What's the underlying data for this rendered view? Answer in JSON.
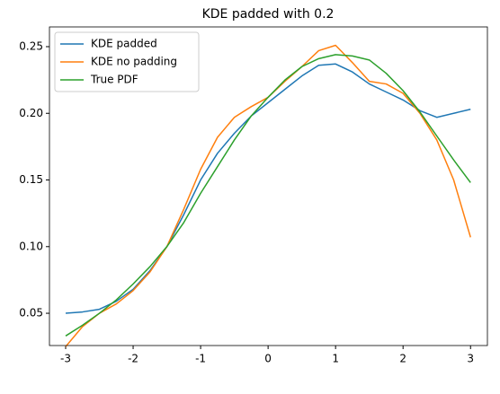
{
  "chart_data": {
    "type": "line",
    "title": "KDE padded with 0.2",
    "x": [
      -3,
      -2.75,
      -2.5,
      -2.25,
      -2,
      -1.75,
      -1.5,
      -1.25,
      -1,
      -0.75,
      -0.5,
      -0.25,
      0,
      0.25,
      0.5,
      0.75,
      1,
      1.25,
      1.5,
      1.75,
      2,
      2.25,
      2.5,
      2.75,
      3
    ],
    "series": [
      {
        "name": "KDE padded",
        "color": "#1f77b4",
        "values": [
          0.05,
          0.051,
          0.053,
          0.059,
          0.068,
          0.082,
          0.1,
          0.124,
          0.15,
          0.17,
          0.185,
          0.198,
          0.208,
          0.218,
          0.228,
          0.236,
          0.237,
          0.231,
          0.222,
          0.216,
          0.21,
          0.202,
          0.197,
          0.2,
          0.203
        ]
      },
      {
        "name": "KDE no padding",
        "color": "#ff7f0e",
        "values": [
          0.025,
          0.04,
          0.05,
          0.057,
          0.067,
          0.081,
          0.1,
          0.128,
          0.158,
          0.182,
          0.197,
          0.205,
          0.212,
          0.224,
          0.235,
          0.247,
          0.251,
          0.238,
          0.224,
          0.222,
          0.215,
          0.2,
          0.18,
          0.15,
          0.107
        ]
      },
      {
        "name": "True PDF",
        "color": "#2ca02c",
        "values": [
          0.033,
          0.041,
          0.05,
          0.06,
          0.072,
          0.085,
          0.1,
          0.118,
          0.14,
          0.16,
          0.18,
          0.198,
          0.212,
          0.225,
          0.235,
          0.241,
          0.244,
          0.243,
          0.24,
          0.23,
          0.217,
          0.201,
          0.183,
          0.165,
          0.148
        ]
      }
    ],
    "xlim": [
      -3.24,
      3.25
    ],
    "ylim": [
      0.0258,
      0.2648
    ],
    "xticks": [
      -3,
      -2,
      -1,
      0,
      1,
      2,
      3
    ],
    "yticks": [
      {
        "value": 0.05,
        "label": "0.05"
      },
      {
        "value": 0.1,
        "label": "0.10"
      },
      {
        "value": 0.15,
        "label": "0.15"
      },
      {
        "value": 0.2,
        "label": "0.20"
      },
      {
        "value": 0.25,
        "label": "0.25"
      }
    ],
    "legend": "upper left"
  }
}
